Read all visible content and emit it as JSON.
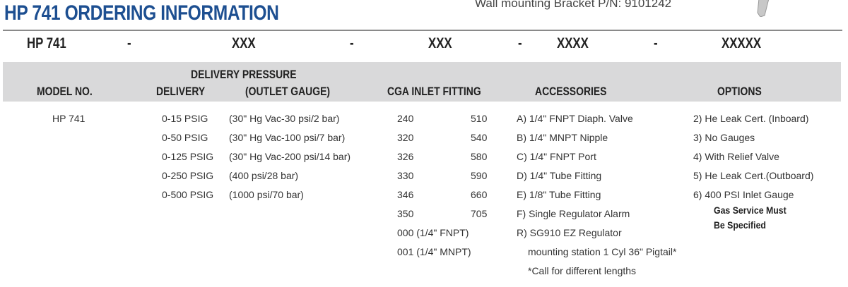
{
  "title": "HP 741 ORDERING INFORMATION",
  "bracket_text": "Wall mounting Bracket P/N: 9101242",
  "part_code": {
    "model": "HP 741",
    "sep": "-",
    "seg1": "XXX",
    "seg2": "XXX",
    "seg3": "XXXX",
    "seg4": "XXXXX"
  },
  "headers": {
    "model": "MODEL NO.",
    "delivery_pressure": "DELIVERY PRESSURE",
    "delivery": "DELIVERY",
    "outlet_gauge": "(OUTLET GAUGE)",
    "cga": "CGA INLET FITTING",
    "accessories": "ACCESSORIES",
    "options": "OPTIONS"
  },
  "model": "HP 741",
  "delivery": [
    "0-15 PSIG",
    "0-50 PSIG",
    "0-125 PSIG",
    "0-250 PSIG",
    "0-500 PSIG"
  ],
  "gauge": [
    "(30\" Hg Vac-30 psi/2 bar)",
    "(30\" Hg Vac-100 psi/7 bar)",
    "(30\" Hg Vac-200 psi/14 bar)",
    "(400 psi/28 bar)",
    "(1000 psi/70 bar)"
  ],
  "cga_left": [
    "240",
    "320",
    "326",
    "330",
    "346",
    "350",
    "000 (1/4\" FNPT)",
    "001 (1/4\" MNPT)"
  ],
  "cga_right": [
    "510",
    "540",
    "580",
    "590",
    "660",
    "705"
  ],
  "accessories": [
    "A) 1/4\" FNPT Diaph. Valve",
    "B) 1/4\" MNPT Nipple",
    "C) 1/4\" FNPT Port",
    "D) 1/4\" Tube Fitting",
    "E) 1/8\" Tube Fitting",
    "F) Single Regulator Alarm",
    "R) SG910 EZ Regulator",
    "mounting station 1 Cyl 36\" Pigtail*",
    "*Call for different lengths"
  ],
  "options": [
    "2) He Leak Cert. (Inboard)",
    "3) No Gauges",
    "4) With Relief Valve",
    "5) He Leak Cert.(Outboard)",
    "6) 400 PSI Inlet Gauge"
  ],
  "options_note": [
    "Gas Service Must",
    "Be Specified"
  ],
  "colors": {
    "title": "#1d4f91",
    "band": "#d9d9da"
  }
}
